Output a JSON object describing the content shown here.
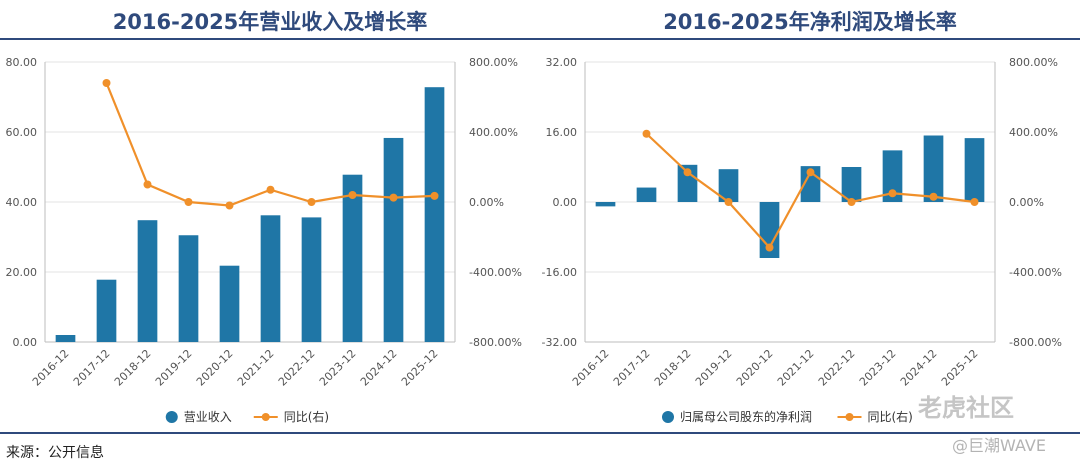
{
  "chart_data": [
    {
      "type": "bar",
      "title": "2016-2025年营业收入及增长率",
      "categories": [
        "2016-12",
        "2017-12",
        "2018-12",
        "2019-12",
        "2020-12",
        "2021-12",
        "2022-12",
        "2023-12",
        "2024-12",
        "2025-12"
      ],
      "series": [
        {
          "name": "营业收入",
          "kind": "bar",
          "axis": "left",
          "values": [
            2.0,
            17.8,
            34.8,
            30.5,
            21.8,
            36.2,
            35.6,
            47.8,
            58.3,
            72.8
          ]
        },
        {
          "name": "同比(右)",
          "kind": "line",
          "axis": "right",
          "values": [
            null,
            680,
            100,
            0,
            -20,
            70,
            0,
            40,
            25,
            35
          ]
        }
      ],
      "ylim_left": [
        0,
        80
      ],
      "yticks_left": [
        "80.00",
        "60.00",
        "40.00",
        "20.00",
        "0.00"
      ],
      "ylim_right": [
        -800,
        800
      ],
      "yticks_right": [
        "800.00%",
        "400.00%",
        "0.00%",
        "-400.00%",
        "-800.00%"
      ],
      "colors": {
        "bar": "#1f76a6",
        "line": "#f0902a"
      }
    },
    {
      "type": "bar",
      "title": "2016-2025年净利润及增长率",
      "categories": [
        "2016-12",
        "2017-12",
        "2018-12",
        "2019-12",
        "2020-12",
        "2021-12",
        "2022-12",
        "2023-12",
        "2024-12",
        "2025-12"
      ],
      "series": [
        {
          "name": "归属母公司股东的净利润",
          "kind": "bar",
          "axis": "left",
          "values": [
            -1.0,
            3.3,
            8.5,
            7.5,
            -12.8,
            8.2,
            8.0,
            11.8,
            15.2,
            14.6
          ]
        },
        {
          "name": "同比(右)",
          "kind": "line",
          "axis": "right",
          "values": [
            null,
            390,
            170,
            0,
            -260,
            170,
            0,
            50,
            30,
            0
          ]
        }
      ],
      "ylim_left": [
        -32,
        32
      ],
      "yticks_left": [
        "32.00",
        "16.00",
        "0.00",
        "-16.00",
        "-32.00"
      ],
      "ylim_right": [
        -800,
        800
      ],
      "yticks_right": [
        "800.00%",
        "400.00%",
        "0.00%",
        "-400.00%",
        "-800.00%"
      ],
      "colors": {
        "bar": "#1f76a6",
        "line": "#f0902a"
      }
    }
  ],
  "footer": {
    "source": "来源：公开信息"
  },
  "watermark": {
    "line1": "老虎社区",
    "line2": "@巨潮WAVE"
  }
}
